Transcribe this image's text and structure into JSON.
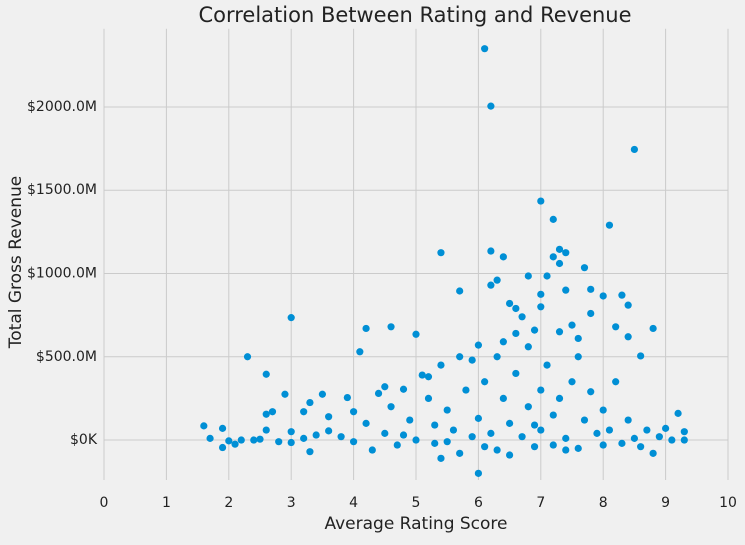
{
  "chart_data": {
    "type": "scatter",
    "title": "Correlation Between Rating and Revenue",
    "x_label": "Average Rating Score",
    "y_label": "Total Gross Revenue",
    "color": "#008fd5",
    "grid": true,
    "xlim": [
      0,
      10
    ],
    "ylim": [
      -240,
      2470
    ],
    "xticks": [
      0,
      1,
      2,
      3,
      4,
      5,
      6,
      7,
      8,
      9,
      10
    ],
    "yticks": [
      {
        "value": 0,
        "label": "$0K"
      },
      {
        "value": 500,
        "label": "$500.0M"
      },
      {
        "value": 1000,
        "label": "$1000.0M"
      },
      {
        "value": 1500,
        "label": "$1500.0M"
      },
      {
        "value": 2000,
        "label": "$2000.0M"
      }
    ],
    "x": [
      6.1,
      6.2,
      8.5,
      7.0,
      7.2,
      8.1,
      7.3,
      6.2,
      6.4,
      5.4,
      7.2,
      7.4,
      7.3,
      7.1,
      6.8,
      7.7,
      6.2,
      6.3,
      5.7,
      7.0,
      7.4,
      7.8,
      8.0,
      8.3,
      8.4,
      3.0,
      2.3,
      2.6,
      4.2,
      4.6,
      5.0,
      4.1,
      6.5,
      6.6,
      6.7,
      7.0,
      7.5,
      7.8,
      8.2,
      8.8,
      8.6,
      8.4,
      7.6,
      7.3,
      6.9,
      6.6,
      6.4,
      6.0,
      5.7,
      5.4,
      5.1,
      5.2,
      4.8,
      4.5,
      4.4,
      3.9,
      3.5,
      3.3,
      2.9,
      2.7,
      2.6,
      1.6,
      1.7,
      1.9,
      1.9,
      2.0,
      2.1,
      2.2,
      2.4,
      2.5,
      2.6,
      2.8,
      3.0,
      3.0,
      3.2,
      3.2,
      3.3,
      3.4,
      3.6,
      3.6,
      3.8,
      4.0,
      4.0,
      4.2,
      4.3,
      4.5,
      4.6,
      4.7,
      4.9,
      5.0,
      5.2,
      5.3,
      5.4,
      5.5,
      5.6,
      5.7,
      5.8,
      5.9,
      6.0,
      6.0,
      6.1,
      6.2,
      6.3,
      6.4,
      6.5,
      6.5,
      6.6,
      6.7,
      6.8,
      6.9,
      7.0,
      7.0,
      7.1,
      7.2,
      7.2,
      7.3,
      7.4,
      7.5,
      7.6,
      7.7,
      7.8,
      7.9,
      8.0,
      8.0,
      8.1,
      8.2,
      8.3,
      8.4,
      8.5,
      8.6,
      8.7,
      8.8,
      8.9,
      9.0,
      9.1,
      9.2,
      9.3,
      9.3,
      6.3,
      6.8,
      5.9,
      7.6,
      5.3,
      4.8,
      6.9,
      7.4,
      6.1,
      5.5
    ],
    "values": [
      2350,
      2005,
      1745,
      1435,
      1325,
      1290,
      1145,
      1135,
      1100,
      1125,
      1100,
      1125,
      1060,
      985,
      985,
      1035,
      930,
      960,
      895,
      875,
      900,
      905,
      865,
      870,
      810,
      735,
      500,
      395,
      670,
      680,
      635,
      530,
      820,
      790,
      740,
      800,
      690,
      760,
      680,
      670,
      505,
      620,
      610,
      650,
      660,
      640,
      590,
      570,
      500,
      450,
      390,
      380,
      305,
      320,
      280,
      255,
      275,
      225,
      275,
      170,
      155,
      85,
      10,
      -45,
      70,
      -5,
      -25,
      0,
      0,
      5,
      60,
      -10,
      50,
      -15,
      10,
      170,
      -70,
      30,
      140,
      55,
      20,
      170,
      -10,
      100,
      -60,
      40,
      200,
      -30,
      120,
      0,
      250,
      -20,
      -110,
      180,
      60,
      -80,
      300,
      20,
      -200,
      130,
      350,
      40,
      -60,
      250,
      -90,
      100,
      400,
      20,
      200,
      -40,
      300,
      60,
      450,
      -30,
      150,
      250,
      10,
      350,
      -50,
      120,
      290,
      40,
      -30,
      180,
      60,
      350,
      -20,
      120,
      10,
      -40,
      60,
      -80,
      20,
      70,
      0,
      160,
      50,
      0,
      500,
      560,
      480,
      500,
      90,
      30,
      90,
      -60,
      -40,
      -10
    ]
  }
}
